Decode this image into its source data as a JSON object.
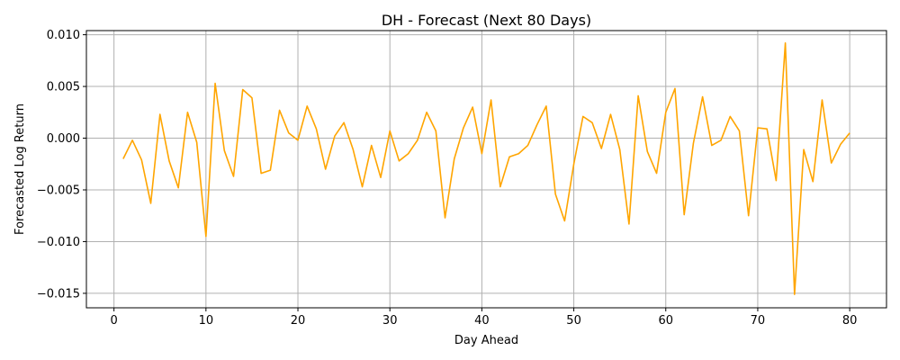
{
  "chart_data": {
    "type": "line",
    "title": "DH - Forecast (Next 80 Days)",
    "xlabel": "Day Ahead",
    "ylabel": "Forecasted Log Return",
    "xlim": [
      -3,
      84
    ],
    "ylim": [
      -0.0164,
      0.0104
    ],
    "xticks": [
      0,
      10,
      20,
      30,
      40,
      50,
      60,
      70,
      80
    ],
    "xtick_labels": [
      "0",
      "10",
      "20",
      "30",
      "40",
      "50",
      "60",
      "70",
      "80"
    ],
    "yticks": [
      -0.015,
      -0.01,
      -0.005,
      0.0,
      0.005,
      0.01
    ],
    "ytick_labels": [
      "−0.015",
      "−0.010",
      "−0.005",
      "0.000",
      "0.005",
      "0.010"
    ],
    "grid": true,
    "series": [
      {
        "color": "#ffa500",
        "x": [
          1,
          2,
          3,
          4,
          5,
          6,
          7,
          8,
          9,
          10,
          11,
          12,
          13,
          14,
          15,
          16,
          17,
          18,
          19,
          20,
          21,
          22,
          23,
          24,
          25,
          26,
          27,
          28,
          29,
          30,
          31,
          32,
          33,
          34,
          35,
          36,
          37,
          38,
          39,
          40,
          41,
          42,
          43,
          44,
          45,
          46,
          47,
          48,
          49,
          50,
          51,
          52,
          53,
          54,
          55,
          56,
          57,
          58,
          59,
          60,
          61,
          62,
          63,
          64,
          65,
          66,
          67,
          68,
          69,
          70,
          71,
          72,
          73,
          74,
          75,
          76,
          77,
          78,
          79,
          80
        ],
        "y": [
          -0.002,
          -0.0002,
          -0.0021,
          -0.0063,
          0.0023,
          -0.0022,
          -0.0048,
          0.0025,
          -0.0004,
          -0.0095,
          0.0053,
          -0.0012,
          -0.0037,
          0.0047,
          0.0039,
          -0.0034,
          -0.0031,
          0.0027,
          0.0005,
          -0.0002,
          0.0031,
          0.0009,
          -0.003,
          0.0002,
          0.0015,
          -0.0011,
          -0.0047,
          -0.0007,
          -0.0038,
          0.0007,
          -0.0022,
          -0.0015,
          -0.0002,
          0.0025,
          0.0007,
          -0.0077,
          -0.002,
          0.001,
          0.003,
          -0.0015,
          0.0037,
          -0.0047,
          -0.0018,
          -0.0015,
          -0.0007,
          0.0013,
          0.0031,
          -0.0054,
          -0.008,
          -0.0025,
          0.0021,
          0.0015,
          -0.001,
          0.0023,
          -0.0011,
          -0.0083,
          0.0041,
          -0.0013,
          -0.0034,
          0.0025,
          0.0048,
          -0.0074,
          -0.0005,
          0.004,
          -0.0007,
          -0.0002,
          0.0021,
          0.0007,
          -0.0075,
          0.001,
          0.0009,
          -0.0041,
          0.0092,
          -0.0151,
          -0.0011,
          -0.0042,
          0.0037,
          -0.0024,
          -0.0006,
          0.0005
        ]
      }
    ]
  }
}
